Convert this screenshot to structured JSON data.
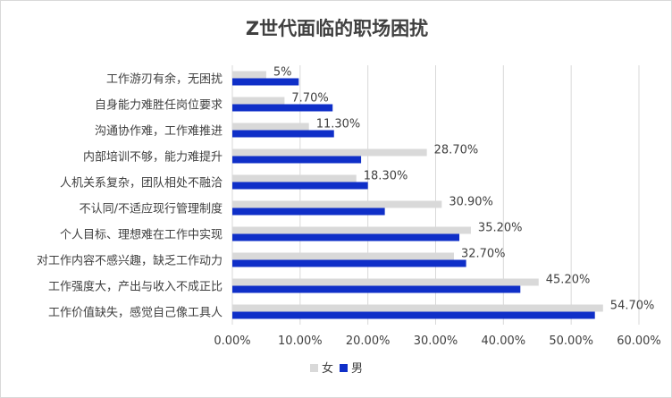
{
  "chart_data": {
    "type": "bar",
    "orientation": "horizontal",
    "title": "Z世代面临的职场困扰",
    "categories": [
      "工作游刃有余，无困扰",
      "自身能力难胜任岗位要求",
      "沟通协作难，工作难推进",
      "内部培训不够，能力难提升",
      "人机关系复杂，团队相处不融洽",
      "不认同/不适应现行管理制度",
      "个人目标、理想难在工作中实现",
      "对工作内容不感兴趣，缺乏工作动力",
      "工作强度大，产出与收入不成正比",
      "工作价值缺失，感觉自己像工具人"
    ],
    "series": [
      {
        "name": "女",
        "color": "#d9d9d9",
        "values": [
          5.0,
          7.7,
          11.3,
          28.7,
          18.3,
          30.9,
          35.2,
          32.7,
          45.2,
          54.7
        ],
        "data_labels": [
          "5%",
          "7.70%",
          "11.30%",
          "28.70%",
          "18.30%",
          "30.90%",
          "35.20%",
          "32.70%",
          "45.20%",
          "54.70%"
        ]
      },
      {
        "name": "男",
        "color": "#0f2fc8",
        "values": [
          9.8,
          14.8,
          15.0,
          19.0,
          20.0,
          22.5,
          33.5,
          34.5,
          42.5,
          53.5
        ]
      }
    ],
    "xlim": [
      0,
      60
    ],
    "xticks": [
      "0.00%",
      "10.00%",
      "20.00%",
      "30.00%",
      "40.00%",
      "50.00%",
      "60.00%"
    ],
    "grid": true,
    "legend_position": "bottom"
  }
}
